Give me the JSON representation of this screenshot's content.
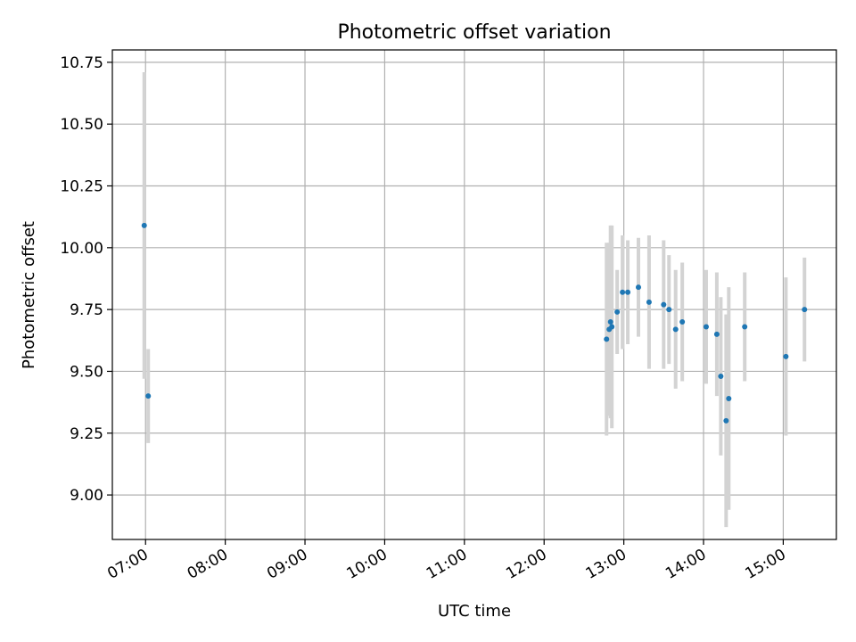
{
  "chart_data": {
    "type": "scatter",
    "title": "Photometric offset variation",
    "xlabel": "UTC time",
    "ylabel": "Photometric offset",
    "x_unit": "UTC time of day (HH:MM)",
    "xlim": [
      "06:35",
      "15:40"
    ],
    "ylim": [
      8.82,
      10.8
    ],
    "grid": true,
    "x_ticks": [
      "07:00",
      "08:00",
      "09:00",
      "10:00",
      "11:00",
      "12:00",
      "13:00",
      "14:00",
      "15:00"
    ],
    "y_ticks": [
      9.0,
      9.25,
      9.5,
      9.75,
      10.0,
      10.25,
      10.5,
      10.75
    ],
    "y_tick_labels": [
      "9.00",
      "9.25",
      "9.50",
      "9.75",
      "10.00",
      "10.25",
      "10.50",
      "10.75"
    ],
    "colors": {
      "point": "#1f77b4",
      "errorbar": "#d3d3d3",
      "grid": "#b0b0b0"
    },
    "points": [
      {
        "x": "06:59",
        "y": 10.09,
        "yerr": 0.62
      },
      {
        "x": "07:02",
        "y": 9.4,
        "yerr": 0.19
      },
      {
        "x": "12:47",
        "y": 9.63,
        "yerr": 0.39
      },
      {
        "x": "12:49",
        "y": 9.67,
        "yerr": 0.35
      },
      {
        "x": "12:50",
        "y": 9.7,
        "yerr": 0.39
      },
      {
        "x": "12:51",
        "y": 9.68,
        "yerr": 0.41
      },
      {
        "x": "12:55",
        "y": 9.74,
        "yerr": 0.17
      },
      {
        "x": "12:59",
        "y": 9.82,
        "yerr": 0.23
      },
      {
        "x": "13:03",
        "y": 9.82,
        "yerr": 0.21
      },
      {
        "x": "13:11",
        "y": 9.84,
        "yerr": 0.2
      },
      {
        "x": "13:19",
        "y": 9.78,
        "yerr": 0.27
      },
      {
        "x": "13:30",
        "y": 9.77,
        "yerr": 0.26
      },
      {
        "x": "13:34",
        "y": 9.75,
        "yerr": 0.22
      },
      {
        "x": "13:39",
        "y": 9.67,
        "yerr": 0.24
      },
      {
        "x": "13:44",
        "y": 9.7,
        "yerr": 0.24
      },
      {
        "x": "14:02",
        "y": 9.68,
        "yerr": 0.23
      },
      {
        "x": "14:10",
        "y": 9.65,
        "yerr": 0.25
      },
      {
        "x": "14:13",
        "y": 9.48,
        "yerr": 0.32
      },
      {
        "x": "14:17",
        "y": 9.3,
        "yerr": 0.43
      },
      {
        "x": "14:19",
        "y": 9.39,
        "yerr": 0.45
      },
      {
        "x": "14:31",
        "y": 9.68,
        "yerr": 0.22
      },
      {
        "x": "15:02",
        "y": 9.56,
        "yerr": 0.32
      },
      {
        "x": "15:16",
        "y": 9.75,
        "yerr": 0.21
      }
    ]
  }
}
